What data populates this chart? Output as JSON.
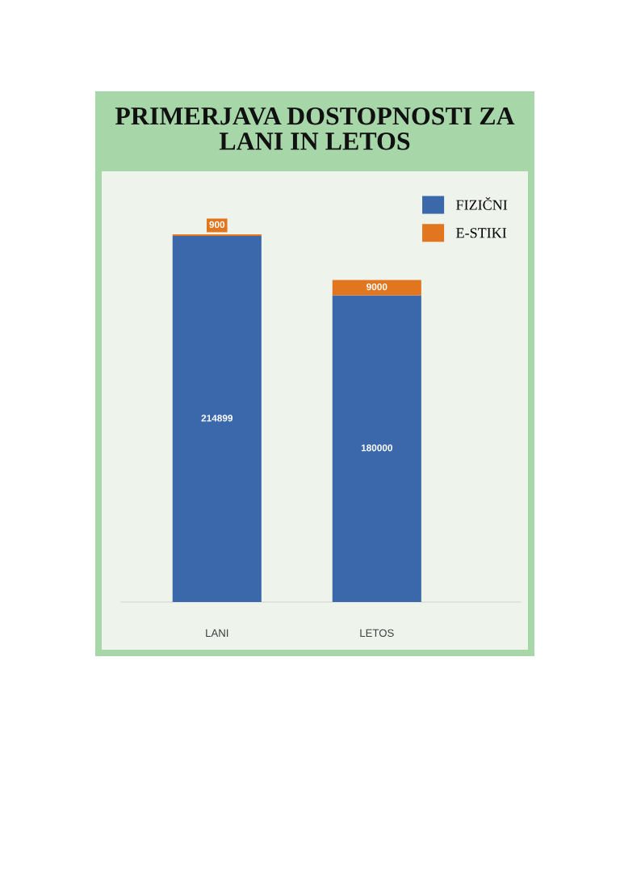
{
  "chart_data": {
    "type": "bar",
    "title": "PRIMERJAVA DOSTOPNOSTI ZA\nLANI IN LETOS",
    "categories": [
      "LANI",
      "LETOS"
    ],
    "stacked": true,
    "series": [
      {
        "name": "FIZIČNI",
        "color": "#3a68aa",
        "values": [
          214899,
          180000
        ]
      },
      {
        "name": "E-STIKI",
        "color": "#e2761f",
        "values": [
          900,
          9000
        ]
      }
    ],
    "data_labels": true,
    "legend": "top right",
    "tick_labels": "x"
  }
}
